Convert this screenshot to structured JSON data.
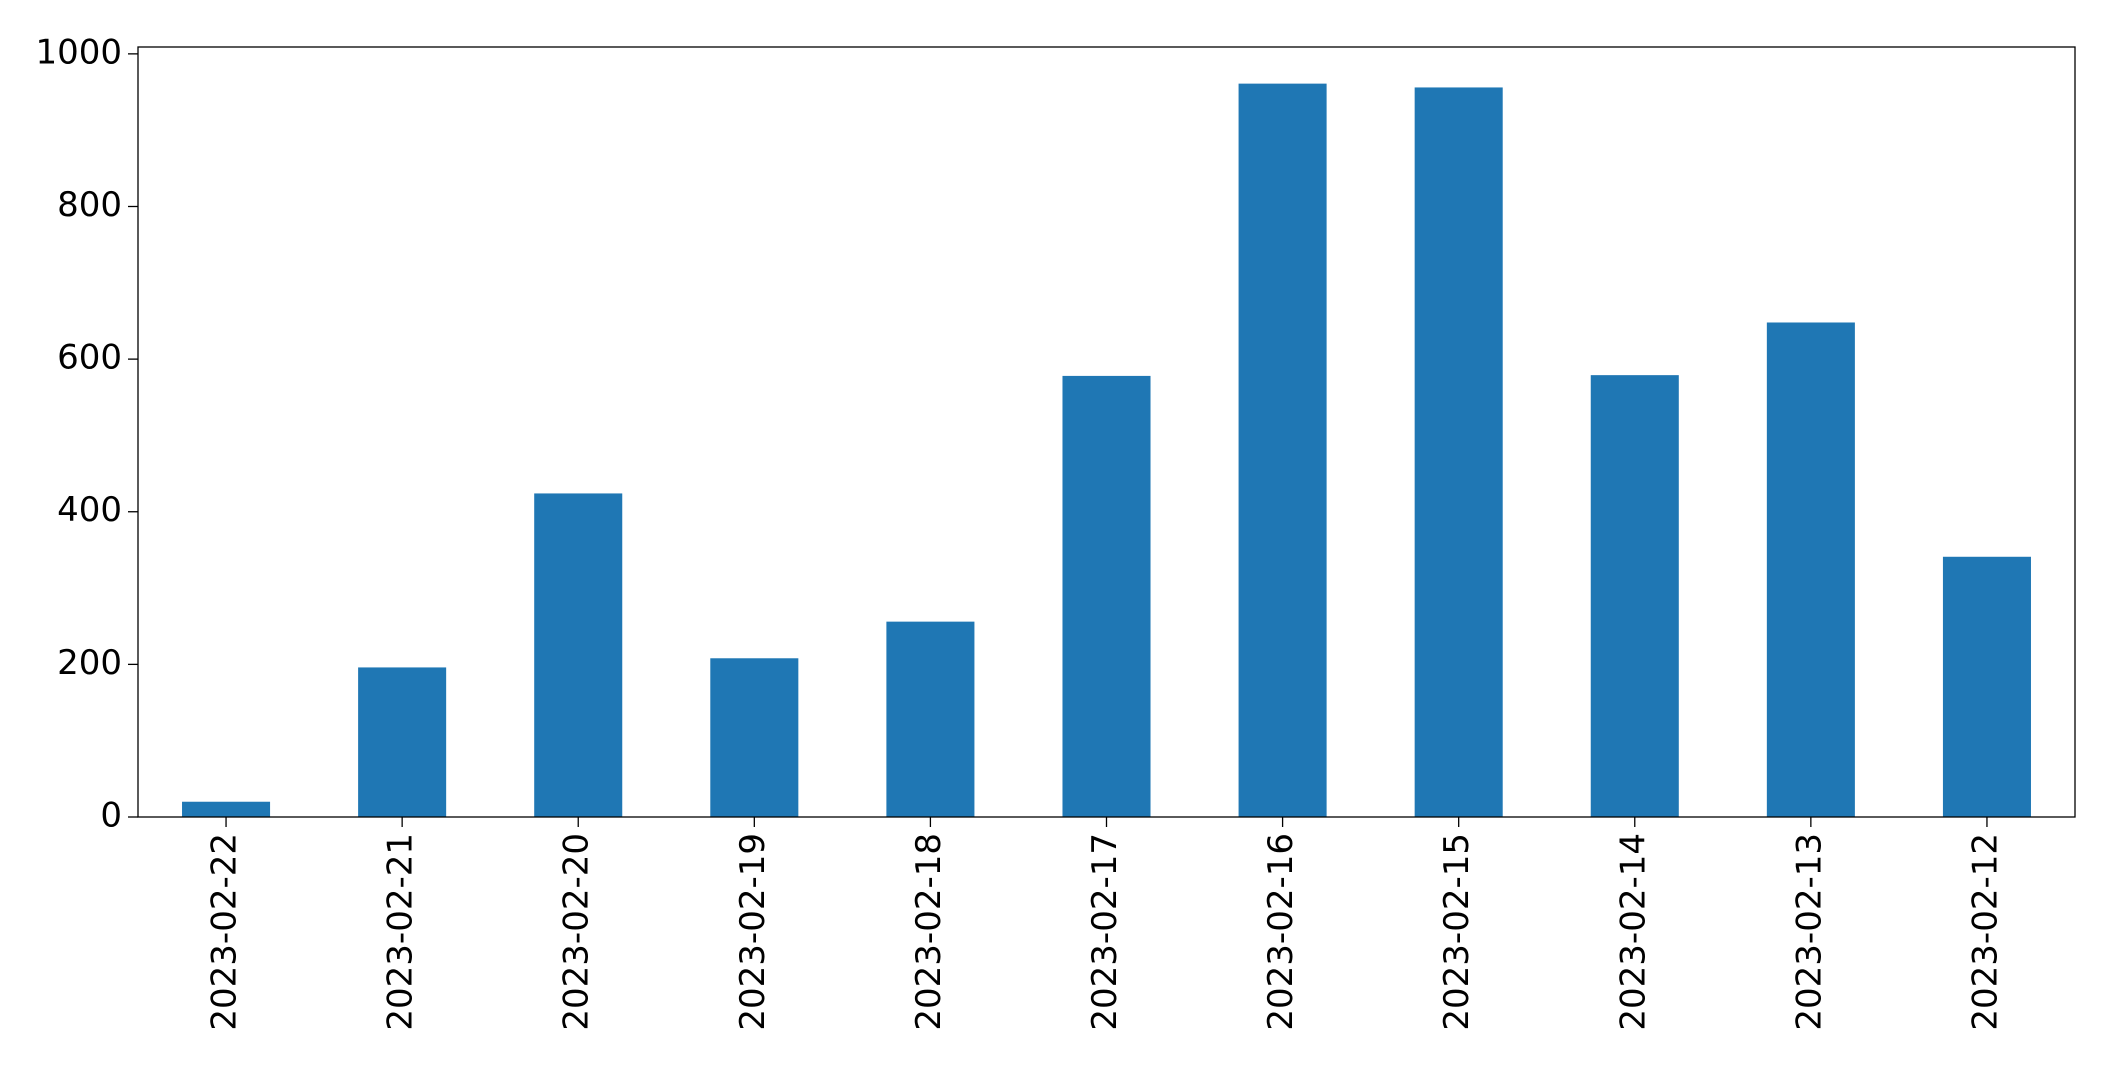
{
  "chart_data": {
    "type": "bar",
    "categories": [
      "2023-02-22",
      "2023-02-21",
      "2023-02-20",
      "2023-02-19",
      "2023-02-18",
      "2023-02-17",
      "2023-02-16",
      "2023-02-15",
      "2023-02-14",
      "2023-02-13",
      "2023-02-12"
    ],
    "values": [
      20,
      196,
      424,
      208,
      256,
      578,
      961,
      956,
      579,
      648,
      341
    ],
    "color": "#1f77b4",
    "ylim": [
      0,
      1009
    ],
    "yticks": [
      0,
      200,
      400,
      600,
      800,
      1000
    ],
    "grid": false
  }
}
